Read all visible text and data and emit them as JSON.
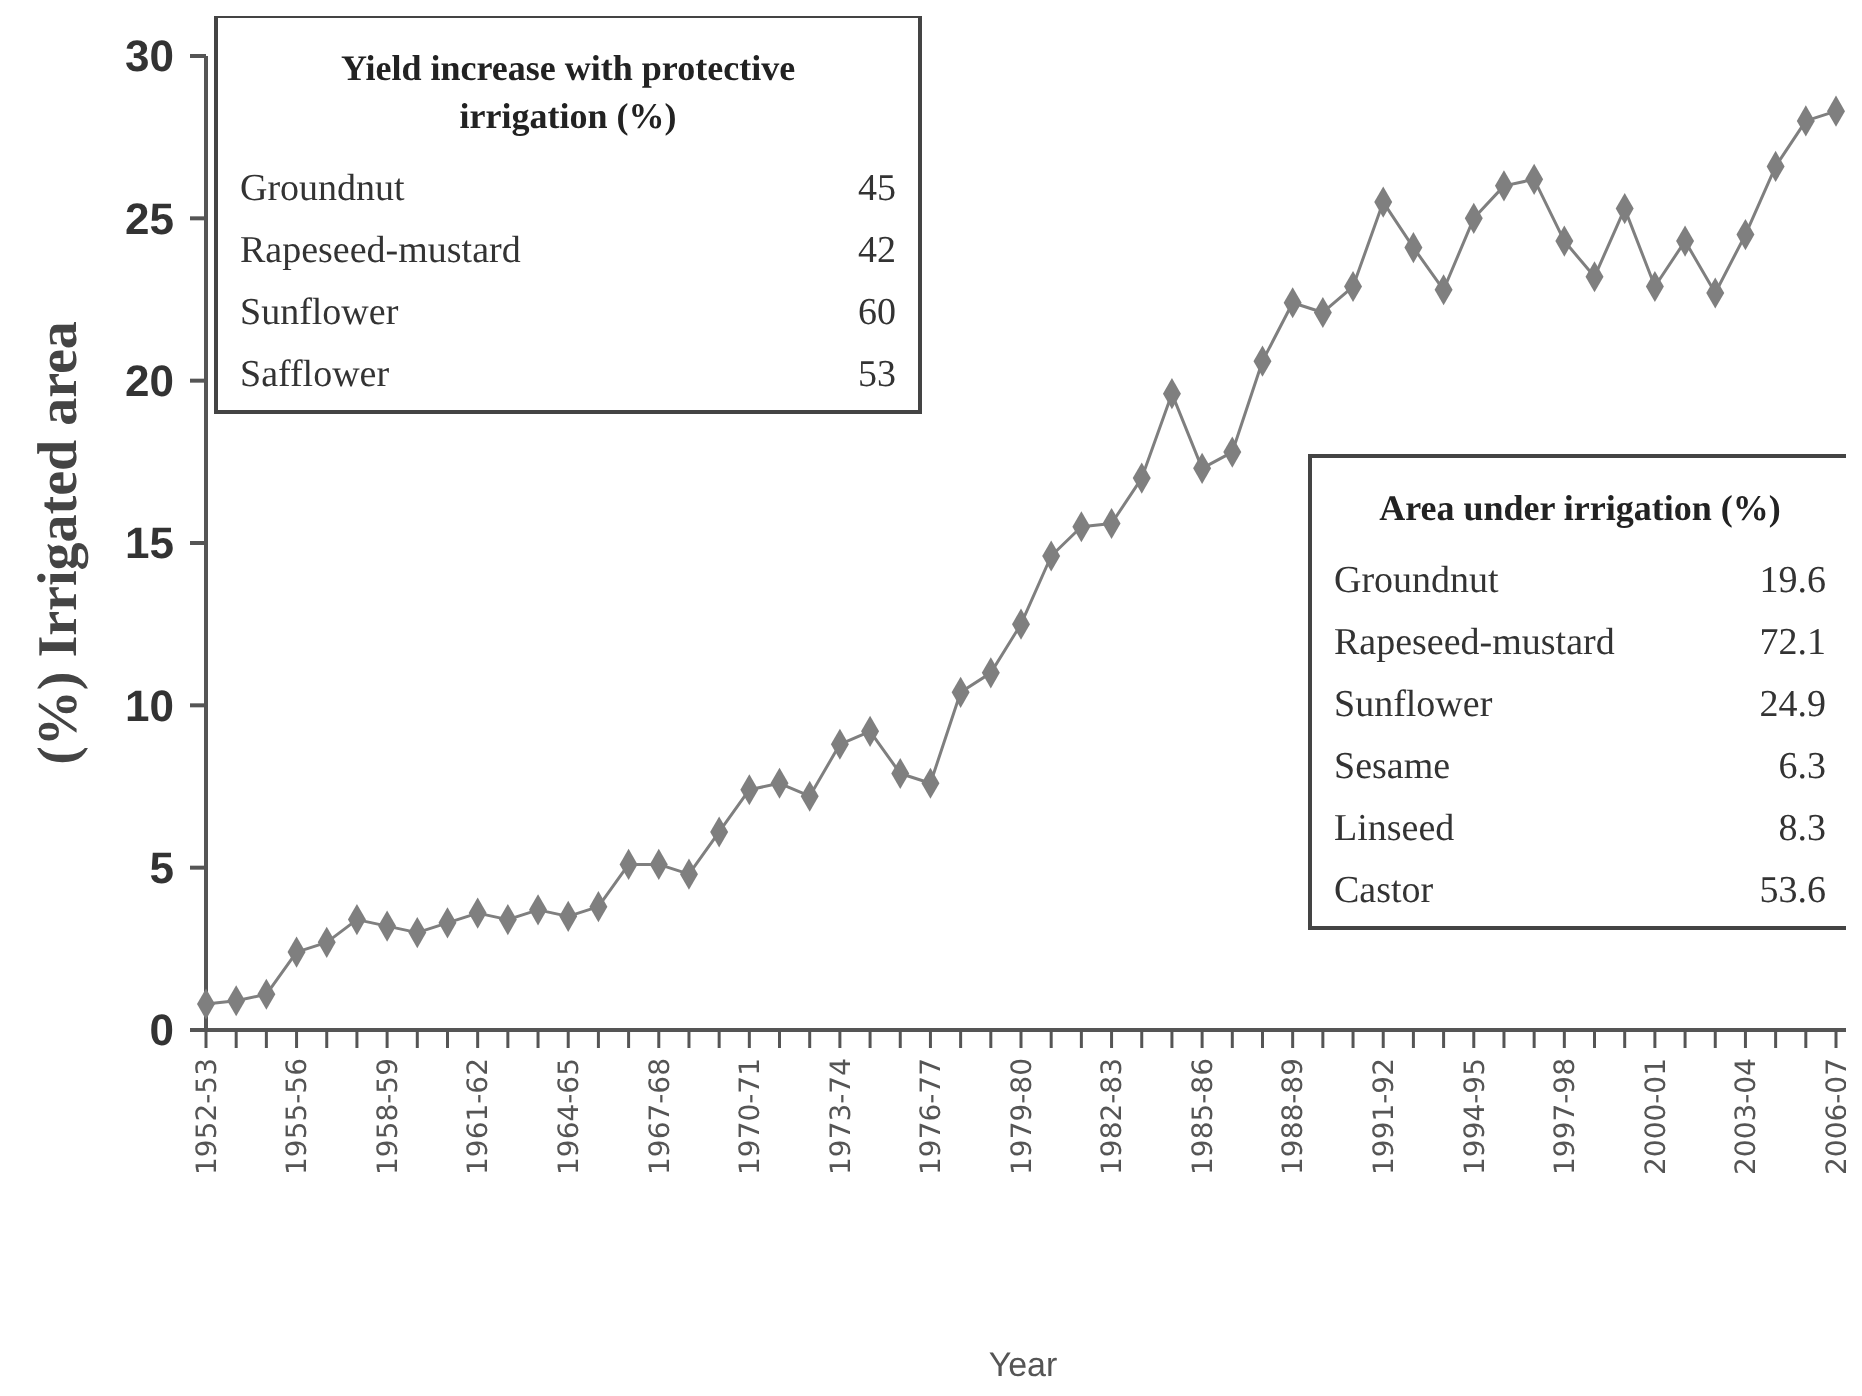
{
  "chart_data": [
    {
      "type": "line",
      "xlabel": "Year",
      "ylabel": "(%) Irrigated area",
      "color": "#7f7f7f",
      "marker": "diamond",
      "categories": [
        "1952-53",
        null,
        null,
        "1955-56",
        null,
        null,
        "1958-59",
        null,
        null,
        "1961-62",
        null,
        null,
        "1964-65",
        null,
        null,
        "1967-68",
        null,
        null,
        "1970-71",
        null,
        null,
        "1973-74",
        null,
        null,
        "1976-77",
        null,
        null,
        "1979-80",
        null,
        null,
        "1982-83",
        null,
        null,
        "1985-86",
        null,
        null,
        "1988-89",
        null,
        null,
        "1991-92",
        null,
        null,
        "1994-95",
        null,
        null,
        "1997-98",
        null,
        null,
        "2000-01",
        null,
        null,
        "2003-04",
        null,
        null,
        "2006-07"
      ],
      "values": [
        0.8,
        0.9,
        1.1,
        2.4,
        2.7,
        3.4,
        3.2,
        3.0,
        3.3,
        3.6,
        3.4,
        3.7,
        3.5,
        3.8,
        5.1,
        5.1,
        4.8,
        6.1,
        7.4,
        7.6,
        7.2,
        8.8,
        9.2,
        7.9,
        7.6,
        10.4,
        11.0,
        12.5,
        14.6,
        15.5,
        15.6,
        17.0,
        19.6,
        17.3,
        17.8,
        20.6,
        22.4,
        22.1,
        22.9,
        25.5,
        24.1,
        22.8,
        25.0,
        26.0,
        26.2,
        24.3,
        23.2,
        25.3,
        22.9,
        24.3,
        22.7,
        24.5,
        26.6,
        28.0,
        28.3
      ],
      "ylim": [
        0,
        30
      ],
      "yticks": [
        0,
        5,
        10,
        15,
        20,
        25,
        30
      ],
      "grid": false
    },
    {
      "type": "other",
      "title": "Yield increase with protective irrigation (%)",
      "categories": [
        "Groundnut",
        "Rapeseed-mustard",
        "Sunflower",
        "Safflower"
      ],
      "values": [
        45,
        42,
        60,
        53
      ],
      "data_labels": true
    },
    {
      "type": "other",
      "title": "Area under irrigation (%)",
      "categories": [
        "Groundnut",
        "Rapeseed-mustard",
        "Sunflower",
        "Sesame",
        "Linseed",
        "Castor"
      ],
      "values": [
        19.6,
        72.1,
        24.9,
        6.3,
        8.3,
        53.6
      ],
      "data_labels": true
    }
  ]
}
